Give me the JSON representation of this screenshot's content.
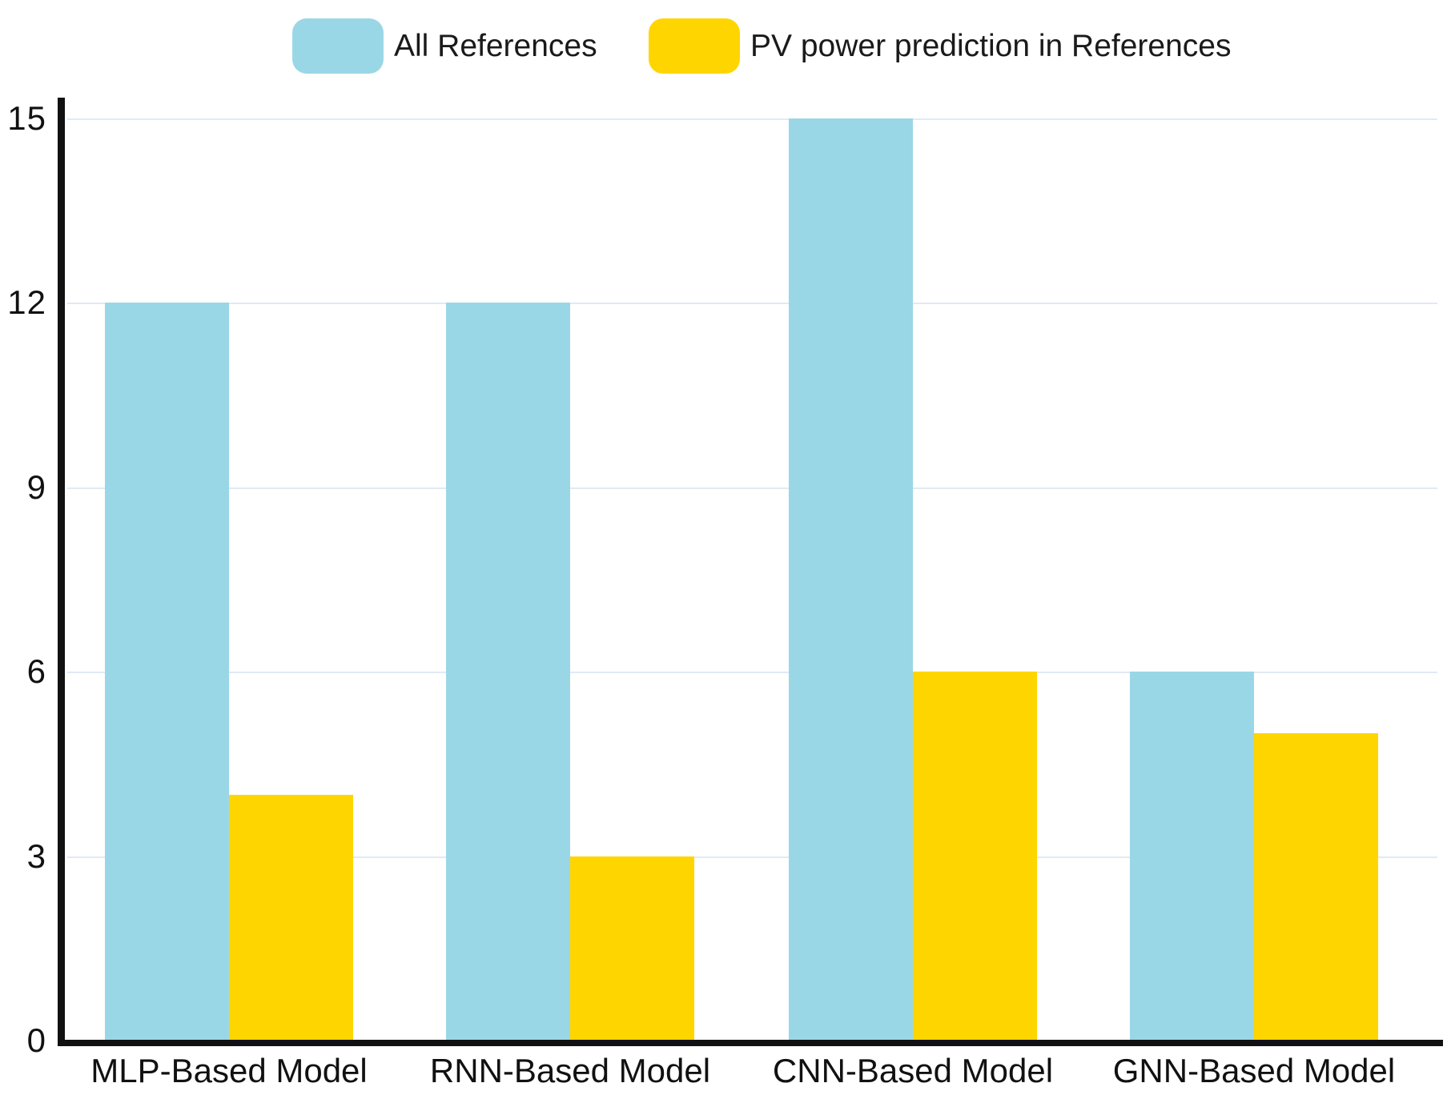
{
  "chart_data": {
    "type": "bar",
    "title": "",
    "xlabel": "",
    "ylabel": "",
    "categories": [
      "MLP-Based Model",
      "RNN-Based Model",
      "CNN-Based Model",
      "GNN-Based Model"
    ],
    "series": [
      {
        "name": "All References",
        "color": "#9AD7E6",
        "values": [
          12,
          12,
          15,
          6
        ]
      },
      {
        "name": "PV power prediction in References",
        "color": "#FFD500",
        "values": [
          4,
          3,
          6,
          5
        ]
      }
    ],
    "ylim": [
      0,
      15
    ],
    "yticks": [
      0,
      3,
      6,
      9,
      12,
      15
    ],
    "grid": true,
    "gridline_color": "#e0eaf5",
    "axis_color": "#111111",
    "legend_position": "top"
  }
}
